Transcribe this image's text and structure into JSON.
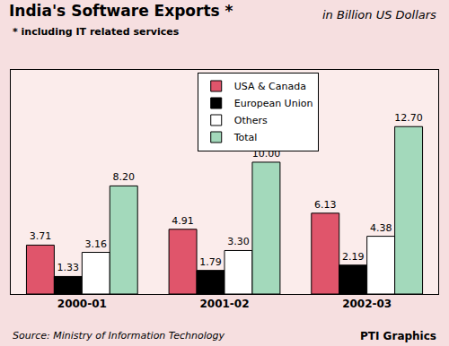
{
  "chart_data": {
    "type": "bar",
    "title": "India's Software Exports *",
    "subtitle": "* including IT related services",
    "annotations": [
      "in Billion US Dollars",
      "Source: Ministry of Information Technology",
      "PTI Graphics"
    ],
    "categories": [
      "2000-01",
      "2001-02",
      "2002-03"
    ],
    "series": [
      {
        "name": "USA & Canada",
        "color": "#e0556b",
        "values": [
          3.71,
          4.91,
          6.13
        ],
        "value_labels": [
          "3.71",
          "4.91",
          "6.13"
        ]
      },
      {
        "name": "European Union",
        "color": "#000000",
        "values": [
          1.33,
          1.79,
          2.19
        ],
        "value_labels": [
          "1.33",
          "1.79",
          "2.19"
        ]
      },
      {
        "name": "Others",
        "color": "#ffffff",
        "values": [
          3.16,
          3.3,
          4.38
        ],
        "value_labels": [
          "3.16",
          "3.30",
          "4.38"
        ]
      },
      {
        "name": "Total",
        "color": "#a3d9bb",
        "values": [
          8.2,
          10.0,
          12.7
        ],
        "value_labels": [
          "8.20",
          "10.00",
          "12.70"
        ]
      }
    ],
    "ylim": [
      0,
      17
    ],
    "data_labels": true,
    "legend": "top right",
    "tick_labels": "x",
    "grid": false
  }
}
